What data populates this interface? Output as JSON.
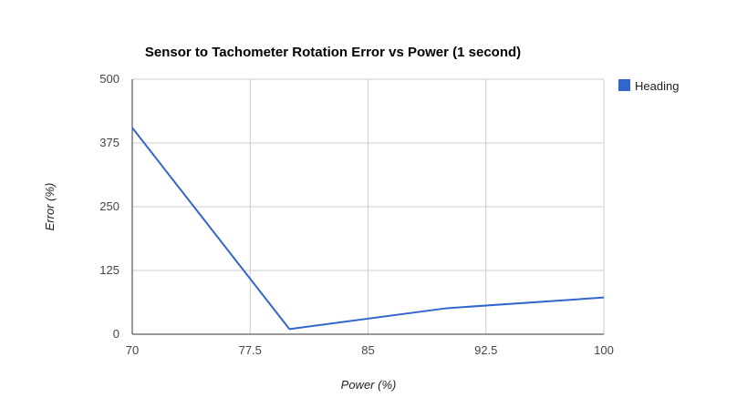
{
  "chart_data": {
    "type": "line",
    "title": "Sensor to Tachometer Rotation Error vs Power (1 second)",
    "xlabel": "Power (%)",
    "ylabel": "Error (%)",
    "xlim": [
      70,
      100
    ],
    "ylim": [
      0,
      500
    ],
    "x_ticks": [
      70,
      77.5,
      85,
      92.5,
      100
    ],
    "x_tick_labels": [
      "70",
      "77.5",
      "85",
      "92.5",
      "100"
    ],
    "y_ticks": [
      0,
      125,
      250,
      375,
      500
    ],
    "y_tick_labels": [
      "0",
      "125",
      "250",
      "375",
      "500"
    ],
    "grid": true,
    "legend_position": "right",
    "series": [
      {
        "name": "Heading",
        "color": "#3366cc",
        "x": [
          70,
          80,
          90,
          100
        ],
        "y": [
          405,
          10,
          51,
          72
        ]
      }
    ]
  },
  "colors": {
    "grid": "#cccccc",
    "axis": "#333333",
    "background": "#ffffff"
  }
}
